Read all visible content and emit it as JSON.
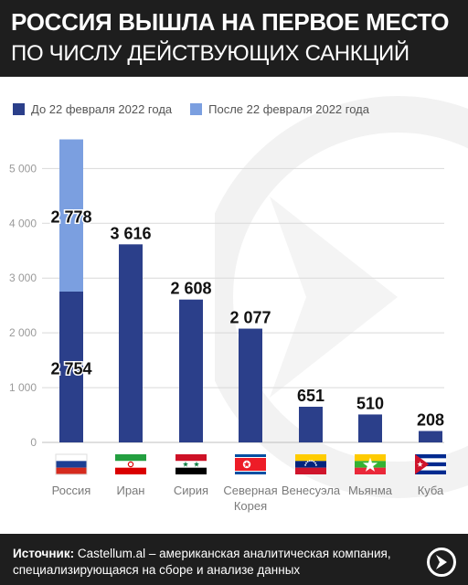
{
  "header": {
    "title": "РОССИЯ ВЫШЛА НА ПЕРВОЕ МЕСТО",
    "subtitle": "ПО ЧИСЛУ ДЕЙСТВУЮЩИХ САНКЦИЙ"
  },
  "colors": {
    "before": "#2b3f8a",
    "after": "#7b9fe0",
    "header_bg": "#1e1e1e",
    "grid": "#d9d9d9"
  },
  "chart_data": {
    "type": "bar",
    "stacked": true,
    "categories": [
      "Россия",
      "Иран",
      "Сирия",
      "Северная Корея",
      "Венесуэла",
      "Мьянма",
      "Куба"
    ],
    "category_labels": [
      [
        "Россия"
      ],
      [
        "Иран"
      ],
      [
        "Сирия"
      ],
      [
        "Северная",
        "Корея"
      ],
      [
        "Венесуэла"
      ],
      [
        "Мьянма"
      ],
      [
        "Куба"
      ]
    ],
    "series": [
      {
        "name": "До 22 февраля 2022 года",
        "values": [
          2754,
          3616,
          2608,
          2077,
          651,
          510,
          208
        ],
        "labels": [
          "2 754",
          "3 616",
          "2 608",
          "2 077",
          "651",
          "510",
          "208"
        ]
      },
      {
        "name": "После 22 февраля 2022 года",
        "values": [
          2778,
          0,
          0,
          0,
          0,
          0,
          0
        ],
        "labels": [
          "2 778",
          "",
          "",
          "",
          "",
          "",
          ""
        ]
      }
    ],
    "ylim": [
      0,
      5532
    ],
    "yticks": [
      0,
      1000,
      2000,
      3000,
      4000,
      5000
    ],
    "ytick_labels": [
      "0",
      "1 000",
      "2 000",
      "3 000",
      "4 000",
      "5 000"
    ],
    "grid": true,
    "legend_position": "top-left",
    "flags": [
      "russia-flag-icon",
      "iran-flag-icon",
      "syria-flag-icon",
      "north-korea-flag-icon",
      "venezuela-flag-icon",
      "myanmar-flag-icon",
      "cuba-flag-icon"
    ]
  },
  "footer": {
    "source_label": "Источник:",
    "source_text": " Castellum.al – американская аналитическая компания, специализирующаяся на сборе и анализе данных"
  }
}
